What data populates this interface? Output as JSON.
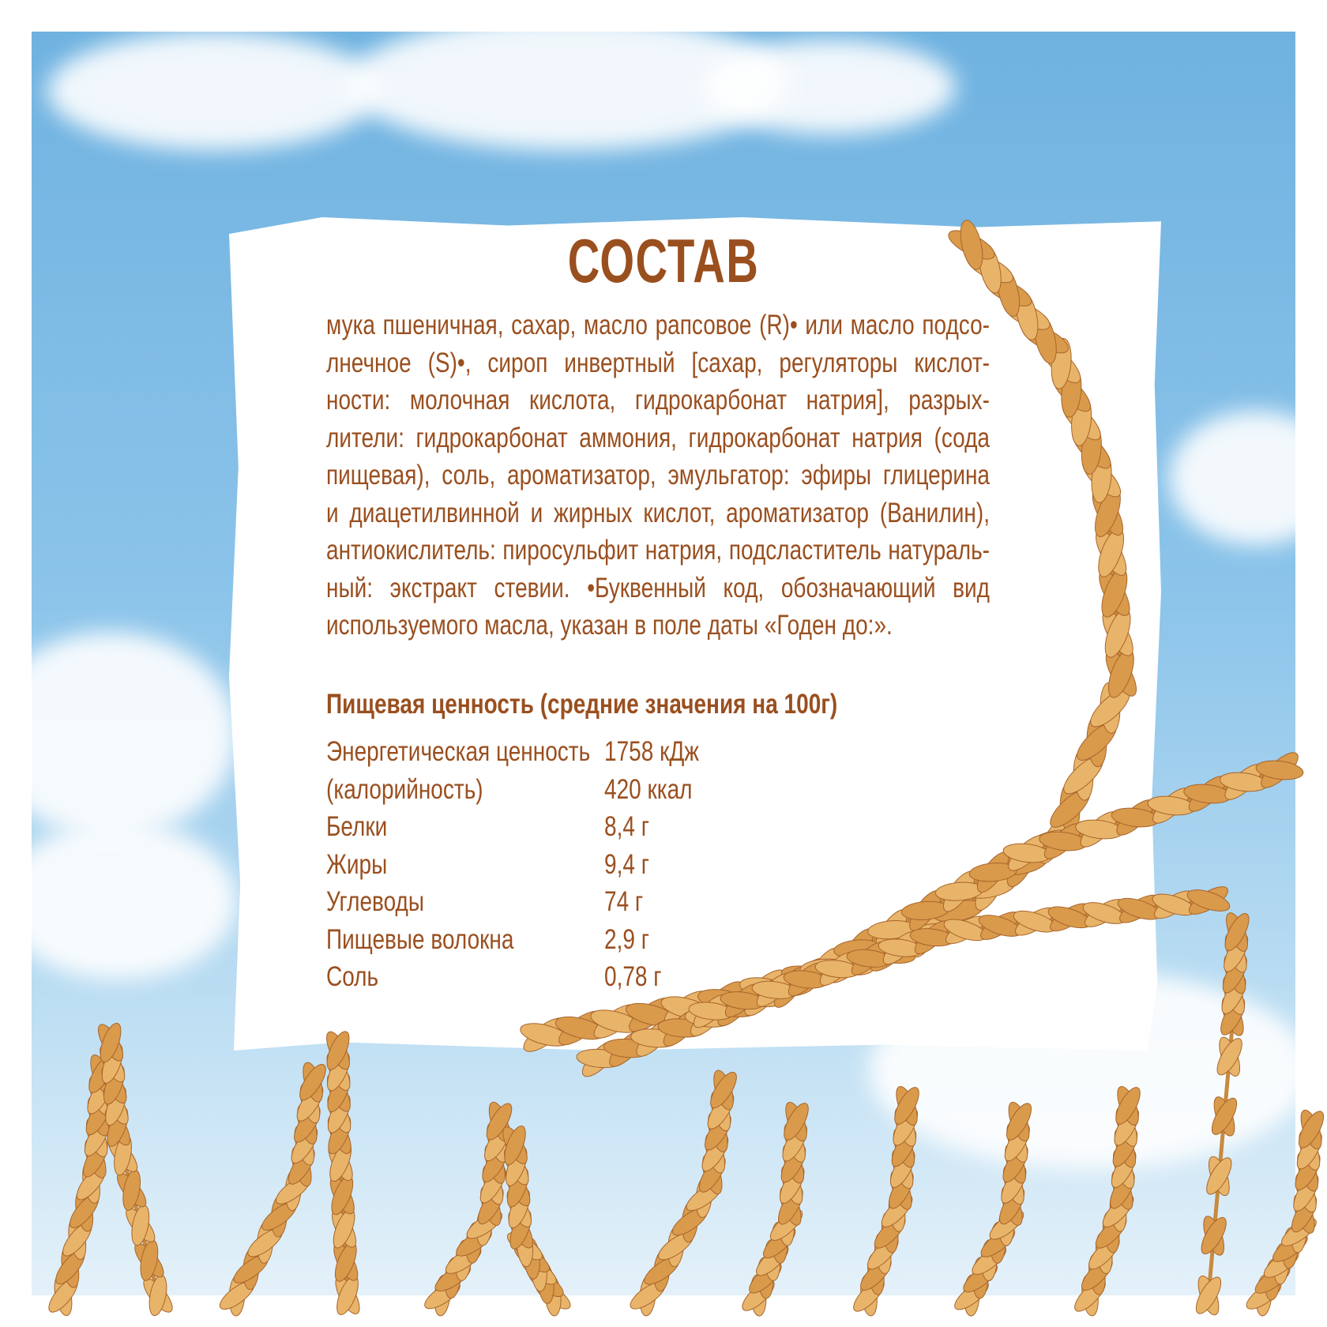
{
  "title": "СОСТАВ",
  "ingredients_lines": [
    "мука пшеничная, сахар, масло рапсовое (R)• или масло подсо-",
    "лнечное (S)•, сироп инвертный [сахар, регуляторы кислот-",
    "ности: молочная кислота, гидрокарбонат натрия], разрых-",
    "лители: гидрокарбонат аммония, гидрокарбонат натрия (сода",
    "пищевая), соль, ароматизатор, эмульгатор: эфиры глицерина",
    "и диацетилвинной и жирных кислот, ароматизатор (Ванилин),",
    "антиокислитель: пиросульфит натрия, подсластитель натураль-",
    "ный: экстракт стевии. •Буквенный код, обозначающий вид",
    "используемого масла, указан в поле даты «Годен до:»."
  ],
  "nutrition": {
    "title": "Пищевая ценность (средние значения на 100г)",
    "rows": [
      {
        "label": "Энергетическая ценность",
        "value": "1758 кДж"
      },
      {
        "label": "(калорийность)",
        "value": "420 ккал"
      },
      {
        "label": "Белки",
        "value": "8,4 г"
      },
      {
        "label": "Жиры",
        "value": "9,4 г"
      },
      {
        "label": "Углеводы",
        "value": "74 г"
      },
      {
        "label": "Пищевые волокна",
        "value": "2,9 г"
      },
      {
        "label": "Соль",
        "value": "0,78 г"
      }
    ]
  },
  "colors": {
    "text": "#9a4f1f",
    "sky": "#7ab9e4",
    "wheat": "#d89a4a"
  }
}
